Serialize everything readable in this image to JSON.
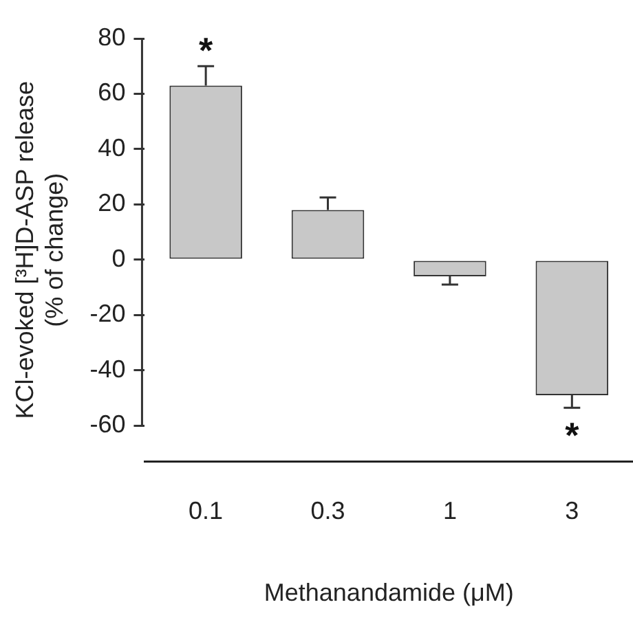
{
  "chart_data": {
    "type": "bar",
    "xlabel": "Methanandamide (μM)",
    "ylabel": "KCl-evoked [³H]D-ASP release (% of change)",
    "categories": [
      "0.1",
      "0.3",
      "1",
      "3"
    ],
    "values": [
      63,
      18,
      -6,
      -49
    ],
    "errors": [
      [
        63,
        70
      ],
      [
        18,
        22.5
      ],
      [
        -9,
        -6
      ],
      [
        -53.5,
        -49
      ]
    ],
    "color": "#c8c8c8",
    "ylim": [
      -73,
      80
    ],
    "yticks": [
      -60,
      -40,
      -20,
      0,
      20,
      40,
      60,
      80
    ],
    "grid": false,
    "legend": false,
    "annotations": [
      {
        "text": "*",
        "x": "0.1",
        "y": 70
      },
      {
        "text": "*",
        "x": "3",
        "y": -53.5
      }
    ]
  }
}
